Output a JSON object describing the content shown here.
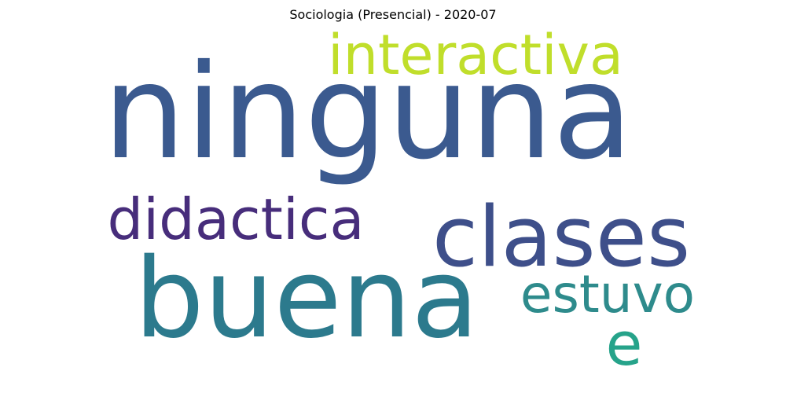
{
  "title": "Sociologia (Presencial) - 2020-07",
  "chart_data": {
    "type": "wordcloud",
    "title": "Sociologia (Presencial) - 2020-07",
    "words": [
      {
        "text": "ninguna",
        "weight": 100,
        "color": "#3b5a8f"
      },
      {
        "text": "buena",
        "weight": 78,
        "color": "#2c7a8d"
      },
      {
        "text": "clases",
        "weight": 62,
        "color": "#3e4f8a"
      },
      {
        "text": "didactica",
        "weight": 38,
        "color": "#472d7b"
      },
      {
        "text": "interactiva",
        "weight": 36,
        "color": "#c0de2b"
      },
      {
        "text": "estuvo",
        "weight": 34,
        "color": "#2e8b8c"
      },
      {
        "text": "e",
        "weight": 32,
        "color": "#26a38a"
      }
    ]
  }
}
